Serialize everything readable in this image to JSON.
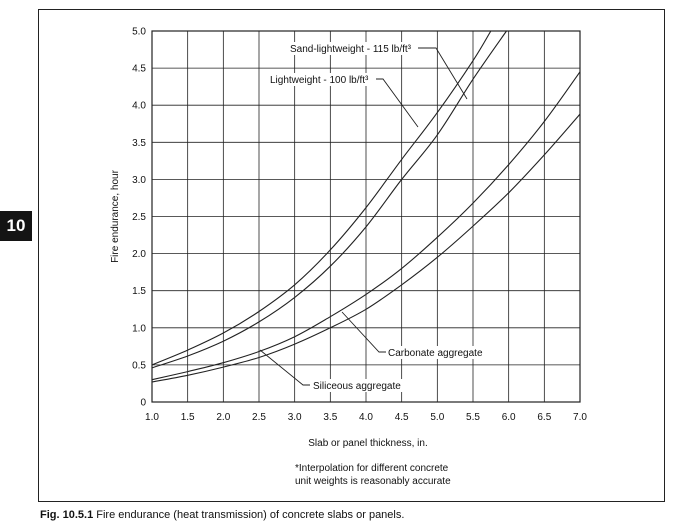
{
  "page_tab": "10",
  "caption": {
    "label": "Fig. 10.5.1",
    "text": "Fire endurance (heat transmission) of concrete slabs or panels."
  },
  "chart_data": {
    "type": "line",
    "title": "",
    "xlabel": "Slab or panel thickness, in.",
    "ylabel": "Fire endurance, hour",
    "xlim": [
      1.0,
      7.0
    ],
    "ylim": [
      0,
      5.0
    ],
    "x_ticks": [
      "1.0",
      "1.5",
      "2.0",
      "2.5",
      "3.0",
      "3.5",
      "4.0",
      "4.5",
      "5.0",
      "5.5",
      "6.0",
      "6.5",
      "7.0"
    ],
    "y_ticks": [
      "0",
      "0.5",
      "1.0",
      "1.5",
      "2.0",
      "2.5",
      "3.0",
      "3.5",
      "4.0",
      "4.5",
      "5.0"
    ],
    "grid": true,
    "note_lines": [
      "*Interpolation for different concrete",
      "unit weights is reasonably accurate"
    ],
    "series": [
      {
        "name": "Sand-lightweight - 115 lb/ft³",
        "x": [
          1.0,
          1.5,
          2.0,
          2.5,
          3.0,
          3.5,
          4.0,
          4.5,
          5.0,
          5.5,
          5.97
        ],
        "y": [
          0.46,
          0.62,
          0.82,
          1.08,
          1.41,
          1.83,
          2.36,
          3.0,
          3.6,
          4.35,
          5.0
        ]
      },
      {
        "name": "Lightweight - 100 lb/ft³",
        "x": [
          1.0,
          1.5,
          2.0,
          2.5,
          3.0,
          3.5,
          4.0,
          4.5,
          5.0,
          5.5,
          5.75
        ],
        "y": [
          0.5,
          0.7,
          0.93,
          1.22,
          1.58,
          2.05,
          2.62,
          3.27,
          3.9,
          4.6,
          5.0
        ]
      },
      {
        "name": "Carbonate aggregate",
        "x": [
          1.0,
          1.5,
          2.0,
          2.5,
          3.0,
          3.5,
          4.0,
          4.5,
          5.0,
          5.5,
          6.0,
          6.5,
          7.0
        ],
        "y": [
          0.3,
          0.41,
          0.53,
          0.68,
          0.88,
          1.15,
          1.45,
          1.8,
          2.22,
          2.68,
          3.2,
          3.78,
          4.45
        ]
      },
      {
        "name": "Siliceous aggregate",
        "x": [
          1.0,
          1.5,
          2.0,
          2.5,
          3.0,
          3.5,
          4.0,
          4.5,
          5.0,
          5.5,
          6.0,
          6.5,
          7.0
        ],
        "y": [
          0.27,
          0.36,
          0.47,
          0.6,
          0.78,
          1.0,
          1.25,
          1.58,
          1.95,
          2.37,
          2.82,
          3.33,
          3.88
        ]
      }
    ],
    "line_color": "#222222",
    "grid_color": "#222222"
  }
}
